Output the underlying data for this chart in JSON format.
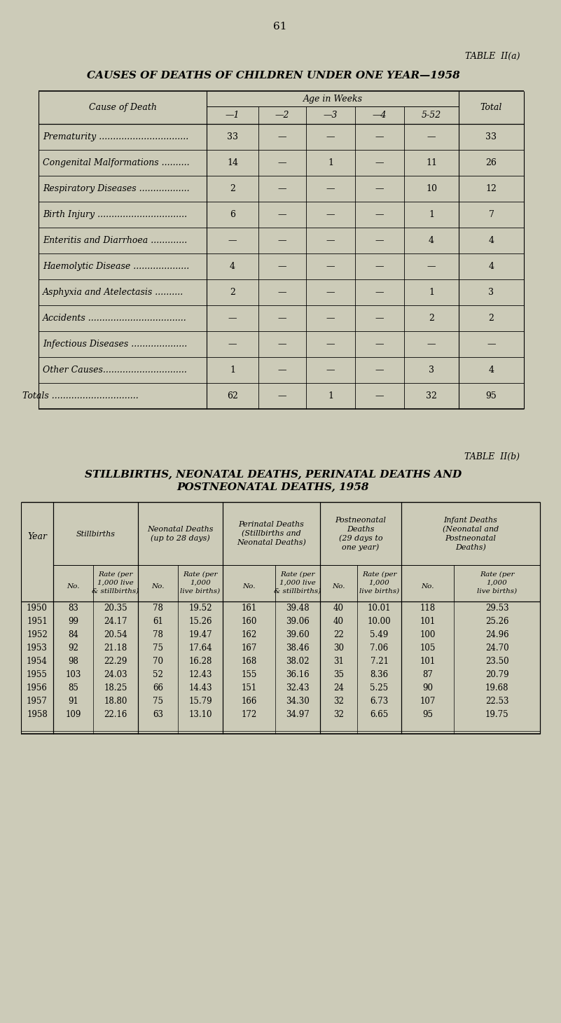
{
  "bg_color": "#cccbb8",
  "page_number": "61",
  "table_a": {
    "title_label": "TABLE  II(a)",
    "title": "CAUSES OF DEATHS OF CHILDREN UNDER ONE YEAR—1958",
    "col_header_group": "Age in Weeks",
    "col_headers": [
      "—1",
      "—2",
      "—3",
      "—4",
      "5-52",
      "Total"
    ],
    "row_header": "Cause of Death",
    "rows": [
      [
        "Prematurity ................................",
        "33",
        "—",
        "—",
        "—",
        "—",
        "33"
      ],
      [
        "Congenital Malformations ..........",
        "14",
        "—",
        "1",
        "—",
        "11",
        "26"
      ],
      [
        "Respiratory Diseases ..................",
        "2",
        "—",
        "—",
        "—",
        "10",
        "12"
      ],
      [
        "Birth Injury ................................",
        "6",
        "—",
        "—",
        "—",
        "1",
        "7"
      ],
      [
        "Enteritis and Diarrhoea .............",
        "—",
        "—",
        "—",
        "—",
        "4",
        "4"
      ],
      [
        "Haemolytic Disease ....................",
        "4",
        "—",
        "—",
        "—",
        "—",
        "4"
      ],
      [
        "Asphyxia and Atelectasis ..........",
        "2",
        "—",
        "—",
        "—",
        "1",
        "3"
      ],
      [
        "Accidents ...................................",
        "—",
        "—",
        "—",
        "—",
        "2",
        "2"
      ],
      [
        "Infectious Diseases ....................",
        "—",
        "—",
        "—",
        "—",
        "—",
        "—"
      ],
      [
        "Other Causes..............................",
        "1",
        "—",
        "—",
        "—",
        "3",
        "4"
      ],
      [
        "Totals ...............................",
        "62",
        "—",
        "1",
        "—",
        "32",
        "95"
      ]
    ],
    "row_is_total": [
      false,
      false,
      false,
      false,
      false,
      false,
      false,
      false,
      false,
      false,
      true
    ]
  },
  "table_b": {
    "title_label": "TABLE  II(b)",
    "title_line1": "STILLBIRTHS, NEONATAL DEATHS, PERINATAL DEATHS AND",
    "title_line2": "POSTNEONATAL DEATHS, 1958",
    "group_labels": [
      "Stillbirths",
      "Neonatal Deaths\n(up to 28 days)",
      "Perinatal Deaths\n(Stillbirths and\nNeonatal Deaths)",
      "Postneonatal\nDeaths\n(29 days to\none year)",
      "Infant Deaths\n(Neonatal and\nPostneonatal\nDeaths)"
    ],
    "sub_headers_no": "No.",
    "sub_headers_rate": [
      "Rate (per\n1,000 live\n& stillbirths)",
      "Rate (per\n1,000\nlive births)",
      "Rate (per\n1,000 live\n& stillbirths)",
      "Rate (per\n1,000\nlive births)",
      "Rate (per\n1,000\nlive births)"
    ],
    "year_col": "Year",
    "data": [
      [
        1950,
        83,
        20.35,
        78,
        19.52,
        161,
        39.48,
        40,
        10.01,
        118,
        29.53
      ],
      [
        1951,
        99,
        24.17,
        61,
        15.26,
        160,
        39.06,
        40,
        10.0,
        101,
        25.26
      ],
      [
        1952,
        84,
        20.54,
        78,
        19.47,
        162,
        39.6,
        22,
        5.49,
        100,
        24.96
      ],
      [
        1953,
        92,
        21.18,
        75,
        17.64,
        167,
        38.46,
        30,
        7.06,
        105,
        24.7
      ],
      [
        1954,
        98,
        22.29,
        70,
        16.28,
        168,
        38.02,
        31,
        7.21,
        101,
        23.5
      ],
      [
        1955,
        103,
        24.03,
        52,
        12.43,
        155,
        36.16,
        35,
        8.36,
        87,
        20.79
      ],
      [
        1956,
        85,
        18.25,
        66,
        14.43,
        151,
        32.43,
        24,
        5.25,
        90,
        19.68
      ],
      [
        1957,
        91,
        18.8,
        75,
        15.79,
        166,
        34.3,
        32,
        6.73,
        107,
        22.53
      ],
      [
        1958,
        109,
        22.16,
        63,
        13.1,
        172,
        34.97,
        32,
        6.65,
        95,
        19.75
      ]
    ]
  }
}
